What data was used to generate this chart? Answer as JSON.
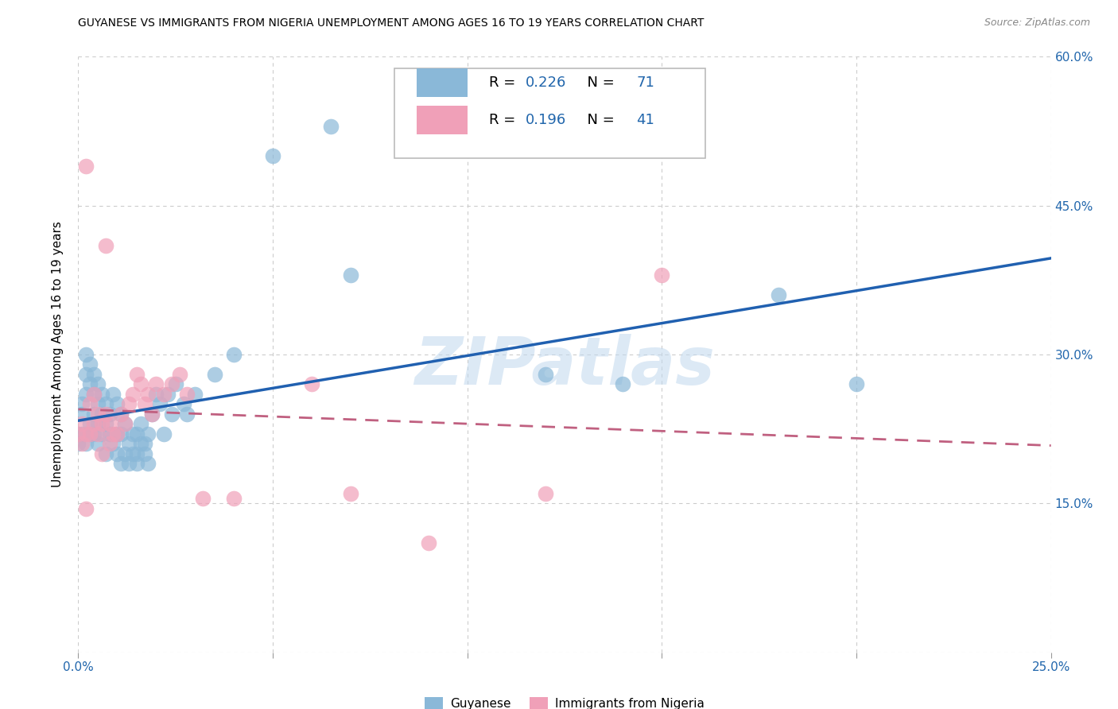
{
  "title": "GUYANESE VS IMMIGRANTS FROM NIGERIA UNEMPLOYMENT AMONG AGES 16 TO 19 YEARS CORRELATION CHART",
  "source": "Source: ZipAtlas.com",
  "ylabel": "Unemployment Among Ages 16 to 19 years",
  "xlim": [
    0.0,
    0.25
  ],
  "ylim": [
    0.0,
    0.6
  ],
  "xtick_positions": [
    0.0,
    0.05,
    0.1,
    0.15,
    0.2,
    0.25
  ],
  "xtick_labels": [
    "0.0%",
    "",
    "",
    "",
    "",
    "25.0%"
  ],
  "ytick_positions": [
    0.0,
    0.15,
    0.3,
    0.45,
    0.6
  ],
  "ytick_labels": [
    "",
    "15.0%",
    "30.0%",
    "45.0%",
    "60.0%"
  ],
  "background_color": "#ffffff",
  "grid_color": "#cccccc",
  "watermark": "ZIPatlas",
  "guyanese_scatter_color": "#8ab8d8",
  "guyanese_line_color": "#2060b0",
  "nigeria_scatter_color": "#f0a0b8",
  "nigeria_line_color": "#c06080",
  "guyanese_R": "0.226",
  "guyanese_N": "71",
  "nigeria_R": "0.196",
  "nigeria_N": "41",
  "guyanese_x": [
    0.0,
    0.0,
    0.001,
    0.001,
    0.001,
    0.002,
    0.002,
    0.002,
    0.002,
    0.003,
    0.003,
    0.003,
    0.003,
    0.004,
    0.004,
    0.004,
    0.004,
    0.005,
    0.005,
    0.005,
    0.005,
    0.006,
    0.006,
    0.006,
    0.007,
    0.007,
    0.007,
    0.008,
    0.008,
    0.009,
    0.009,
    0.01,
    0.01,
    0.01,
    0.011,
    0.011,
    0.011,
    0.012,
    0.012,
    0.013,
    0.013,
    0.014,
    0.014,
    0.015,
    0.015,
    0.015,
    0.016,
    0.016,
    0.017,
    0.017,
    0.018,
    0.018,
    0.019,
    0.02,
    0.021,
    0.022,
    0.023,
    0.024,
    0.025,
    0.027,
    0.028,
    0.03,
    0.035,
    0.04,
    0.05,
    0.065,
    0.07,
    0.12,
    0.14,
    0.18,
    0.2
  ],
  "guyanese_y": [
    0.22,
    0.21,
    0.24,
    0.22,
    0.25,
    0.26,
    0.28,
    0.3,
    0.21,
    0.23,
    0.27,
    0.29,
    0.22,
    0.24,
    0.26,
    0.22,
    0.28,
    0.23,
    0.25,
    0.27,
    0.21,
    0.22,
    0.24,
    0.26,
    0.2,
    0.23,
    0.25,
    0.22,
    0.24,
    0.21,
    0.26,
    0.2,
    0.22,
    0.25,
    0.19,
    0.22,
    0.24,
    0.2,
    0.23,
    0.19,
    0.21,
    0.2,
    0.22,
    0.19,
    0.2,
    0.22,
    0.21,
    0.23,
    0.2,
    0.21,
    0.19,
    0.22,
    0.24,
    0.26,
    0.25,
    0.22,
    0.26,
    0.24,
    0.27,
    0.25,
    0.24,
    0.26,
    0.28,
    0.3,
    0.5,
    0.53,
    0.38,
    0.28,
    0.27,
    0.36,
    0.27
  ],
  "nigeria_x": [
    0.0,
    0.001,
    0.001,
    0.002,
    0.002,
    0.003,
    0.003,
    0.004,
    0.004,
    0.005,
    0.005,
    0.006,
    0.006,
    0.007,
    0.007,
    0.008,
    0.008,
    0.009,
    0.01,
    0.011,
    0.012,
    0.013,
    0.014,
    0.015,
    0.016,
    0.017,
    0.018,
    0.019,
    0.02,
    0.022,
    0.024,
    0.026,
    0.028,
    0.032,
    0.04,
    0.06,
    0.07,
    0.09,
    0.12,
    0.15,
    0.002
  ],
  "nigeria_y": [
    0.22,
    0.23,
    0.21,
    0.49,
    0.22,
    0.22,
    0.25,
    0.23,
    0.26,
    0.22,
    0.24,
    0.2,
    0.23,
    0.24,
    0.41,
    0.21,
    0.23,
    0.22,
    0.22,
    0.24,
    0.23,
    0.25,
    0.26,
    0.28,
    0.27,
    0.25,
    0.26,
    0.24,
    0.27,
    0.26,
    0.27,
    0.28,
    0.26,
    0.155,
    0.155,
    0.27,
    0.16,
    0.11,
    0.16,
    0.38,
    0.145
  ]
}
